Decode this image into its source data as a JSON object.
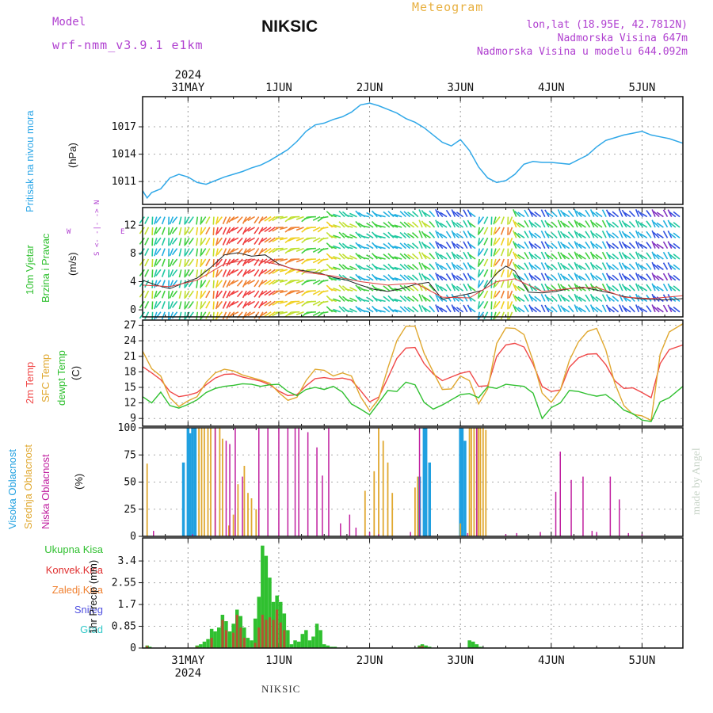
{
  "header": {
    "model_label": "Model",
    "model_name": "wrf-nmm_v3.9.1  e1km",
    "station": "NIKSIC",
    "meteogram": "Meteogram",
    "coords": "lon,lat (18.95E, 42.7812N)",
    "elevation": "Nadmorska Visina 647m",
    "model_elevation": "Nadmorska Visina u modelu 644.092m",
    "footer_station": "NIKSIC",
    "watermark": "made by Angel"
  },
  "time_axis": {
    "year": "2024",
    "labels": [
      "31MAY",
      "1JUN",
      "2JUN",
      "3JUN",
      "4JUN",
      "5JUN"
    ],
    "day_offsets": [
      0,
      1,
      2,
      3,
      4,
      5
    ],
    "range_days": [
      -0.5,
      5.45
    ]
  },
  "colors": {
    "pressure": "#30a8e8",
    "t2m": "#f04848",
    "tsfc": "#e0a830",
    "dewpt": "#30c030",
    "high_cloud": "#20a0e0",
    "mid_cloud": "#e0a830",
    "low_cloud": "#c020a0",
    "total_precip": "#30c030",
    "conv_precip": "#e03030",
    "frozen_precip": "#f08030",
    "snow": "#5050e0",
    "graupel": "#30c8c8",
    "wind_speed_line": "#222222"
  },
  "chart_data": [
    {
      "type": "line",
      "panel": "pressure",
      "label_main": "Pritisak na nivou mora",
      "unit": "(hPa)",
      "ylim": [
        1008.5,
        1020.3
      ],
      "yticks": [
        1011,
        1014,
        1017
      ],
      "series": [
        {
          "x": [
            -0.5,
            -0.45,
            -0.4,
            -0.3,
            -0.2,
            -0.1,
            0,
            0.1,
            0.2,
            0.3,
            0.4,
            0.5,
            0.6,
            0.7,
            0.8,
            0.9,
            1.0,
            1.1,
            1.2,
            1.3,
            1.4,
            1.5,
            1.6,
            1.7,
            1.8,
            1.9,
            2.0,
            2.1,
            2.2,
            2.3,
            2.4,
            2.5,
            2.6,
            2.7,
            2.8,
            2.9,
            3.0,
            3.1,
            3.2,
            3.3,
            3.4,
            3.5,
            3.6,
            3.7,
            3.8,
            3.9,
            4.0,
            4.1,
            4.2,
            4.3,
            4.4,
            4.5,
            4.6,
            4.7,
            4.8,
            4.9,
            5.0,
            5.1,
            5.2,
            5.3,
            5.45
          ],
          "values": [
            1010.0,
            1009.2,
            1009.8,
            1010.2,
            1011.4,
            1011.8,
            1011.5,
            1010.9,
            1010.7,
            1011.1,
            1011.5,
            1011.8,
            1012.1,
            1012.5,
            1012.8,
            1013.3,
            1013.9,
            1014.5,
            1015.4,
            1016.5,
            1017.2,
            1017.4,
            1017.8,
            1018.1,
            1018.6,
            1019.4,
            1019.6,
            1019.3,
            1018.9,
            1018.5,
            1017.9,
            1017.5,
            1016.9,
            1016.1,
            1015.3,
            1014.9,
            1015.6,
            1014.4,
            1012.6,
            1011.4,
            1010.9,
            1011.1,
            1011.8,
            1012.9,
            1013.2,
            1013.1,
            1013.1,
            1013.0,
            1012.9,
            1013.4,
            1013.9,
            1014.8,
            1015.5,
            1015.8,
            1016.1,
            1016.3,
            1016.5,
            1016.1,
            1015.9,
            1015.7,
            1015.2
          ]
        }
      ]
    },
    {
      "type": "line",
      "panel": "wind",
      "label_main": "10m Vjetar",
      "label_sub": "Brzina i Pravac",
      "unit": "(m/s)",
      "direction_key": [
        "N",
        "<- -|- ->",
        "S"
      ],
      "direction_key_side": [
        "W",
        "E"
      ],
      "ylim": [
        -1,
        14.5
      ],
      "yticks": [
        0,
        4,
        8,
        12
      ],
      "series": [
        {
          "name": "wind speed",
          "x": [
            -0.5,
            -0.35,
            -0.2,
            -0.05,
            0.1,
            0.25,
            0.4,
            0.55,
            0.7,
            0.85,
            1.0,
            1.15,
            1.3,
            1.45,
            1.6,
            1.75,
            1.9,
            2.05,
            2.2,
            2.35,
            2.5,
            2.65,
            2.8,
            2.95,
            3.1,
            3.25,
            3.4,
            3.5,
            3.6,
            3.75,
            3.9,
            4.05,
            4.2,
            4.35,
            4.5,
            4.65,
            4.8,
            4.95,
            5.1,
            5.25,
            5.45
          ],
          "values": [
            4.2,
            3.5,
            3.0,
            3.8,
            4.5,
            6.0,
            7.8,
            8.1,
            7.6,
            7.8,
            6.5,
            5.8,
            5.5,
            5.2,
            4.6,
            4.2,
            3.5,
            2.9,
            2.6,
            3.0,
            3.6,
            3.9,
            1.5,
            1.9,
            2.3,
            2.8,
            5.2,
            6.2,
            5.5,
            2.5,
            2.4,
            2.6,
            3.0,
            3.2,
            2.8,
            2.4,
            1.9,
            1.6,
            1.5,
            1.4,
            1.6
          ]
        },
        {
          "name": "gust",
          "x": [
            -0.5,
            -0.2,
            0.1,
            0.4,
            0.7,
            1.0,
            1.3,
            1.6,
            1.9,
            2.2,
            2.5,
            2.8,
            3.1,
            3.4,
            3.6,
            3.9,
            4.2,
            4.5,
            4.8,
            5.1,
            5.45
          ],
          "values": [
            3.5,
            3.3,
            4.2,
            6.5,
            7.2,
            6.4,
            5.3,
            4.8,
            4.0,
            3.5,
            3.8,
            1.8,
            1.7,
            4.0,
            4.4,
            2.6,
            3.0,
            3.2,
            1.8,
            1.6,
            2.0
          ]
        }
      ],
      "direction_deg": [
        {
          "from": -0.5,
          "to": -0.15,
          "dir": 200
        },
        {
          "from": -0.15,
          "to": 0.45,
          "dir": 200
        },
        {
          "from": 0.45,
          "to": 0.95,
          "dir": 225
        },
        {
          "from": 0.95,
          "to": 1.55,
          "dir": 250
        },
        {
          "from": 1.55,
          "to": 2.45,
          "dir": 300
        },
        {
          "from": 2.45,
          "to": 3.2,
          "dir": 320
        },
        {
          "from": 3.2,
          "to": 3.6,
          "dir": 200
        },
        {
          "from": 3.6,
          "to": 5.45,
          "dir": 320
        }
      ]
    },
    {
      "type": "line",
      "panel": "temperature",
      "labels": [
        "2m Temp",
        "SFC Temp",
        "dewpt Temp"
      ],
      "unit": "(C)",
      "ylim": [
        7.5,
        28.0
      ],
      "yticks": [
        9,
        12,
        15,
        18,
        21,
        24,
        27
      ],
      "x": [
        -0.5,
        -0.4,
        -0.3,
        -0.2,
        -0.1,
        0,
        0.1,
        0.2,
        0.3,
        0.4,
        0.5,
        0.6,
        0.7,
        0.8,
        0.9,
        1.0,
        1.1,
        1.2,
        1.3,
        1.4,
        1.5,
        1.6,
        1.7,
        1.8,
        1.9,
        2.0,
        2.1,
        2.2,
        2.3,
        2.4,
        2.5,
        2.6,
        2.7,
        2.8,
        2.9,
        3.0,
        3.1,
        3.2,
        3.3,
        3.4,
        3.5,
        3.6,
        3.7,
        3.8,
        3.9,
        4.0,
        4.1,
        4.2,
        4.3,
        4.4,
        4.5,
        4.6,
        4.7,
        4.8,
        4.9,
        5.0,
        5.1,
        5.2,
        5.3,
        5.45
      ],
      "series": [
        {
          "name": "2m Temp",
          "values": [
            19.0,
            17.8,
            16.5,
            14.2,
            13.2,
            13.5,
            14.0,
            15.5,
            16.8,
            17.5,
            17.6,
            17.0,
            16.6,
            16.2,
            15.5,
            14.3,
            13.4,
            13.6,
            15.3,
            16.7,
            16.9,
            16.6,
            16.8,
            16.4,
            14.4,
            12.2,
            13.1,
            16.8,
            20.6,
            22.6,
            22.7,
            19.6,
            17.6,
            16.3,
            17.0,
            17.7,
            18.1,
            15.2,
            15.3,
            21.0,
            23.2,
            23.5,
            22.8,
            19.5,
            15.2,
            14.2,
            14.5,
            18.9,
            20.7,
            21.4,
            21.5,
            19.4,
            16.3,
            14.8,
            14.9,
            14.0,
            13.0,
            19.6,
            22.3,
            23.2
          ]
        },
        {
          "name": "SFC Temp",
          "values": [
            22.0,
            18.6,
            17.2,
            13.0,
            11.3,
            12.4,
            13.2,
            16.0,
            17.8,
            18.5,
            18.2,
            17.4,
            16.9,
            16.4,
            15.8,
            14.0,
            12.5,
            13.1,
            16.3,
            18.5,
            18.3,
            17.2,
            17.8,
            17.2,
            13.2,
            10.5,
            12.8,
            18.7,
            24.0,
            26.8,
            26.8,
            21.6,
            18.0,
            14.6,
            14.7,
            17.2,
            16.3,
            11.8,
            14.7,
            23.5,
            26.5,
            26.4,
            25.2,
            20.1,
            13.9,
            12.1,
            14.5,
            20.2,
            23.8,
            25.8,
            26.4,
            22.3,
            15.8,
            11.5,
            9.8,
            9.5,
            8.6,
            21.4,
            25.7,
            27.3
          ]
        },
        {
          "name": "dewpt Temp",
          "values": [
            13.2,
            12.0,
            14.1,
            11.5,
            11.0,
            11.7,
            12.6,
            14.0,
            14.8,
            15.2,
            15.4,
            15.7,
            15.6,
            15.2,
            15.5,
            15.6,
            14.2,
            13.4,
            14.6,
            15.0,
            14.6,
            15.2,
            14.1,
            11.8,
            10.8,
            9.7,
            12.0,
            14.4,
            14.2,
            16.0,
            15.5,
            12.1,
            10.8,
            11.6,
            12.6,
            13.6,
            13.8,
            13.0,
            15.1,
            14.8,
            15.6,
            15.4,
            15.2,
            13.9,
            9.0,
            11.1,
            12.0,
            14.4,
            14.2,
            13.7,
            13.3,
            13.6,
            12.3,
            10.6,
            9.9,
            8.7,
            8.4,
            12.2,
            13.0,
            15.2
          ]
        }
      ]
    },
    {
      "type": "bar",
      "panel": "clouds",
      "labels": [
        "Visoka Oblacnost",
        "Srednja Oblacnost",
        "Niska Oblacnost"
      ],
      "unit": "(%)",
      "ylim": [
        0,
        100
      ],
      "yticks": [
        0,
        25,
        50,
        75,
        100
      ],
      "series": [
        {
          "name": "Visoka Oblacnost",
          "x": [
            -0.05,
            0.0,
            0.02,
            0.05,
            0.08,
            2.55,
            2.6,
            2.62,
            2.66,
            3.0,
            3.02,
            3.05
          ],
          "values": [
            68,
            100,
            95,
            100,
            100,
            55,
            100,
            100,
            68,
            100,
            100,
            88
          ]
        },
        {
          "name": "Srednja Oblacnost",
          "x": [
            -0.45,
            0.12,
            0.15,
            0.18,
            0.22,
            0.25,
            0.3,
            0.35,
            0.38,
            0.45,
            0.5,
            0.55,
            0.62,
            0.66,
            0.7,
            0.75,
            1.95,
            2.05,
            2.1,
            2.15,
            2.2,
            2.25,
            2.5,
            2.53,
            3.0,
            3.1,
            3.12,
            3.15,
            3.18,
            3.2,
            3.22,
            3.25,
            3.28
          ],
          "values": [
            67,
            100,
            100,
            100,
            100,
            100,
            100,
            100,
            90,
            10,
            20,
            48,
            65,
            40,
            35,
            25,
            42,
            60,
            100,
            88,
            68,
            40,
            45,
            55,
            12,
            100,
            100,
            100,
            100,
            100,
            100,
            100,
            98
          ]
        },
        {
          "name": "Niska Oblacnost",
          "x": [
            -0.38,
            0.05,
            0.3,
            0.42,
            0.46,
            0.52,
            0.6,
            0.78,
            0.88,
            1.0,
            1.1,
            1.18,
            1.22,
            1.32,
            1.42,
            1.48,
            1.55,
            1.68,
            1.78,
            1.85,
            2.0,
            2.1,
            2.45,
            2.55,
            3.08,
            3.18,
            3.5,
            3.62,
            3.88,
            4.05,
            4.1,
            4.22,
            4.35,
            4.45,
            4.5,
            4.65,
            4.75,
            4.85,
            5.0
          ],
          "values": [
            5,
            2,
            100,
            88,
            85,
            100,
            55,
            100,
            100,
            100,
            100,
            100,
            100,
            96,
            82,
            56,
            100,
            12,
            20,
            8,
            4,
            2,
            4,
            100,
            3,
            100,
            2,
            3,
            4,
            41,
            78,
            52,
            55,
            5,
            4,
            55,
            34,
            3,
            2
          ]
        }
      ]
    },
    {
      "type": "bar",
      "panel": "precip",
      "labels": [
        "Ukupna Kisa",
        "Konvek.Kisa",
        "Zaledj.Kisa",
        "Snijeg",
        "Grad"
      ],
      "unit": "1hr Precip (mm)",
      "ylim": [
        0,
        4.3
      ],
      "yticks": [
        0,
        0.85,
        1.7,
        2.55,
        3.4
      ],
      "yticklabels": [
        "0",
        "0.85",
        "1.7",
        "2.55",
        "3.4"
      ],
      "series": [
        {
          "name": "Ukupna Kisa",
          "x": [
            -0.45,
            -0.42,
            0.1,
            0.14,
            0.18,
            0.22,
            0.26,
            0.3,
            0.34,
            0.38,
            0.42,
            0.46,
            0.5,
            0.54,
            0.58,
            0.62,
            0.66,
            0.7,
            0.74,
            0.78,
            0.82,
            0.86,
            0.9,
            0.94,
            0.98,
            1.02,
            1.06,
            1.1,
            1.14,
            1.18,
            1.22,
            1.26,
            1.3,
            1.34,
            1.38,
            1.42,
            1.46,
            1.5,
            1.54,
            1.58,
            1.62,
            1.66,
            2.55,
            2.58,
            2.62,
            2.66,
            3.1,
            3.14,
            3.18,
            3.22
          ],
          "values": [
            0.1,
            0.05,
            0.1,
            0.15,
            0.25,
            0.35,
            0.75,
            0.65,
            0.8,
            1.3,
            1.05,
            0.65,
            0.95,
            1.5,
            1.25,
            0.8,
            0.4,
            0.3,
            1.15,
            2.0,
            4.0,
            3.6,
            2.75,
            1.8,
            2.05,
            1.8,
            1.35,
            0.7,
            0.15,
            0.3,
            0.25,
            0.55,
            0.7,
            0.3,
            0.45,
            0.95,
            0.7,
            0.15,
            0.1,
            0.05,
            0.05,
            0.02,
            0.1,
            0.15,
            0.1,
            0.05,
            0.3,
            0.25,
            0.15,
            0.05
          ]
        },
        {
          "name": "Konvek.Kisa",
          "x": [
            -0.45,
            0.1,
            0.26,
            0.38,
            0.42,
            0.5,
            0.54,
            0.58,
            0.62,
            0.74,
            0.78,
            0.82,
            0.86,
            0.9,
            0.94,
            0.98,
            1.02,
            1.06,
            2.55,
            2.58
          ],
          "values": [
            0.08,
            0.05,
            0.4,
            1.1,
            0.7,
            0.6,
            1.3,
            0.8,
            0.4,
            0.2,
            0.8,
            1.3,
            1.1,
            1.2,
            1.1,
            1.5,
            1.0,
            0.7,
            0.05,
            0.08
          ]
        }
      ]
    }
  ]
}
